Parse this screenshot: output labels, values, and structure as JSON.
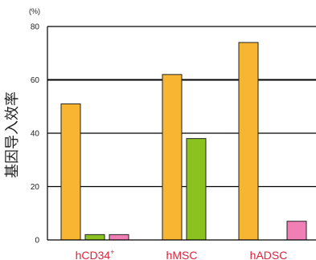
{
  "chart_data": {
    "type": "bar",
    "unit_label": "(%)",
    "ylabel": "基因导入效率",
    "ylim": [
      0,
      80
    ],
    "yticks": [
      0,
      20,
      40,
      60,
      80
    ],
    "grid": "horizontal",
    "categories": [
      {
        "label": "hCD34",
        "superscript": "+"
      },
      {
        "label": "hMSC",
        "superscript": ""
      },
      {
        "label": "hADSC",
        "superscript": ""
      }
    ],
    "series": [
      {
        "color": "#f7b531",
        "values": [
          51,
          62,
          74
        ]
      },
      {
        "color": "#8cc21f",
        "values": [
          2,
          38,
          0
        ]
      },
      {
        "color": "#f07fb6",
        "values": [
          2,
          0,
          7
        ]
      }
    ]
  }
}
